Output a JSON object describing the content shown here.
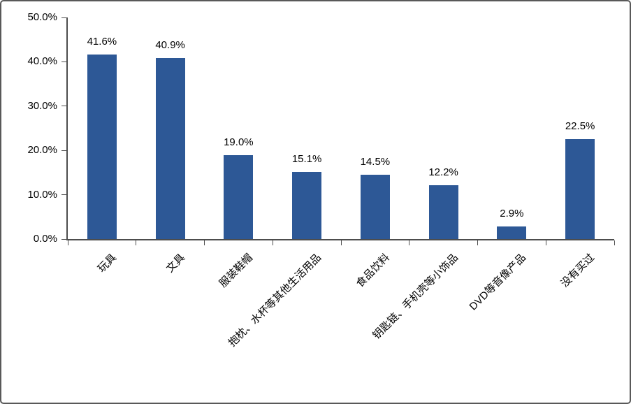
{
  "chart_data": {
    "type": "bar",
    "title": "",
    "xlabel": "",
    "ylabel": "",
    "categories": [
      "玩具",
      "文具",
      "服装鞋帽",
      "抱枕、水杯等其他生活用品",
      "食品饮料",
      "钥匙链、手机壳等小饰品",
      "DVD等音像产品",
      "没有买过"
    ],
    "values": [
      41.6,
      40.9,
      19.0,
      15.1,
      14.5,
      12.2,
      2.9,
      22.5
    ],
    "value_labels": [
      "41.6%",
      "40.9%",
      "19.0%",
      "15.1%",
      "14.5%",
      "12.2%",
      "2.9%",
      "22.5%"
    ],
    "y_tick_labels": [
      "50.0%",
      "40.0%",
      "30.0%",
      "20.0%",
      "10.0%",
      "0.0%"
    ],
    "y_tick_values": [
      50,
      40,
      30,
      20,
      10,
      0
    ],
    "ylim": [
      0,
      50
    ],
    "grid": false,
    "legend": null,
    "label_rotation_deg": -45,
    "colors": {
      "bar": "#2D5896",
      "axis": "#4D4D4D",
      "text": "#000000",
      "figure_border": "#595959",
      "background": "#FFFFFF"
    }
  }
}
